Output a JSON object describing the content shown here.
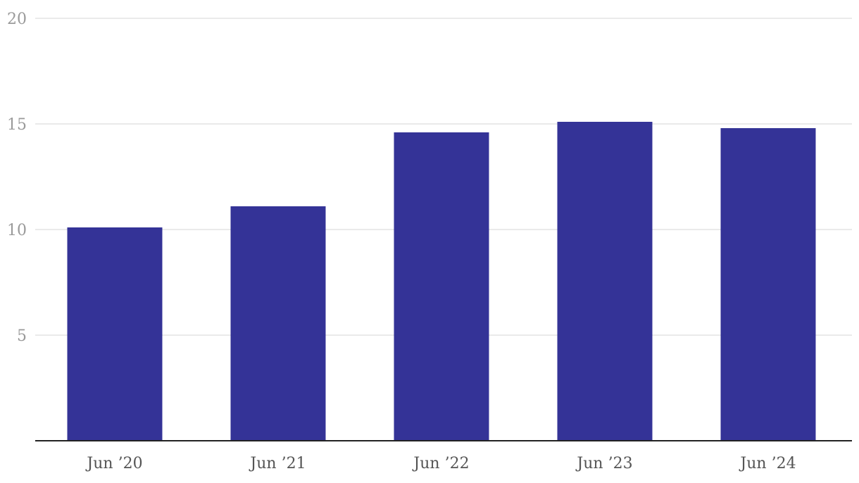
{
  "chart_data": {
    "type": "bar",
    "title": "",
    "xlabel": "",
    "ylabel": "",
    "categories": [
      "Jun ’20",
      "Jun ’21",
      "Jun ’22",
      "Jun ’23",
      "Jun ’24"
    ],
    "values": [
      10.1,
      11.1,
      14.6,
      15.1,
      14.8
    ],
    "ylim": [
      0,
      20
    ],
    "yticks": [
      "5",
      "10",
      "15",
      "20"
    ],
    "grid": true,
    "legend": "none",
    "bar_color": "#343397",
    "grid_color": "#e3e3e3",
    "axis_color": "#222222",
    "tick_label_color": "#9a9a9a",
    "category_label_color": "#555555"
  }
}
